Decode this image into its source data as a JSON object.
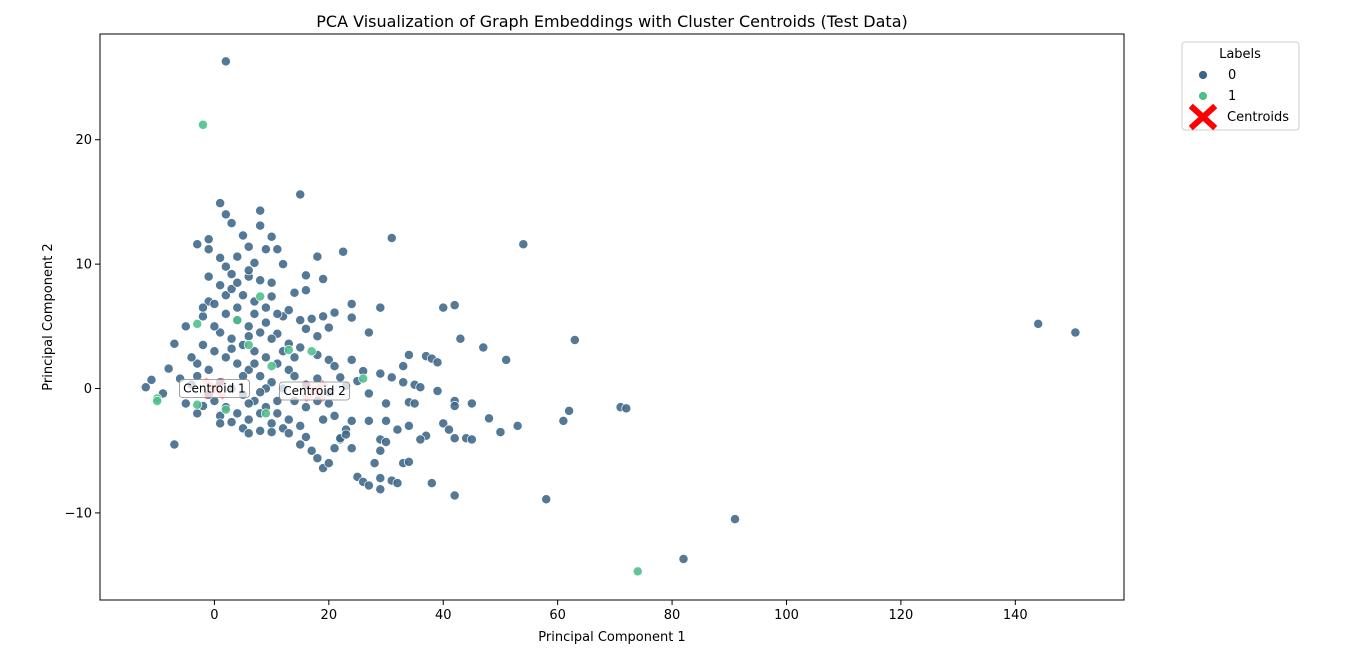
{
  "chart_data": {
    "type": "scatter",
    "title": "PCA Visualization of Graph Embeddings with Cluster Centroids (Test Data)",
    "xlabel": "Principal Component 1",
    "ylabel": "Principal Component 2",
    "xlim": [
      -20,
      159
    ],
    "ylim": [
      -17,
      28.5
    ],
    "x_ticks": [
      0,
      20,
      40,
      60,
      80,
      100,
      120,
      140
    ],
    "y_ticks": [
      -10,
      0,
      10,
      20
    ],
    "y_tick_labels": [
      "−10",
      "0",
      "10",
      "20"
    ],
    "grid": false,
    "legend": {
      "title": "Labels",
      "placement": "outside-top-right",
      "entries": [
        "0",
        "1",
        "Centroids"
      ]
    },
    "colors": {
      "label_0": "#3b6787",
      "label_1": "#4cbf8a",
      "centroid": "#ff0000",
      "point_edge": "#ffffff"
    },
    "series": [
      {
        "name": "0",
        "points": [
          [
            2,
            26.3
          ],
          [
            15,
            15.6
          ],
          [
            1,
            14.9
          ],
          [
            2,
            14
          ],
          [
            8,
            14.3
          ],
          [
            3,
            13.3
          ],
          [
            8,
            13.1
          ],
          [
            -3,
            11.6
          ],
          [
            -1,
            12
          ],
          [
            5,
            12.3
          ],
          [
            6,
            11.4
          ],
          [
            10,
            12.2
          ],
          [
            31,
            12.1
          ],
          [
            54,
            11.6
          ],
          [
            22.5,
            11
          ],
          [
            18,
            10.6
          ],
          [
            9,
            11.2
          ],
          [
            11,
            11.2
          ],
          [
            1,
            10.5
          ],
          [
            4,
            10.6
          ],
          [
            12,
            10
          ],
          [
            16,
            9.1
          ],
          [
            19,
            8.8
          ],
          [
            7,
            10.1
          ],
          [
            -1,
            9
          ],
          [
            3,
            9.2
          ],
          [
            6,
            9
          ],
          [
            14,
            7.7
          ],
          [
            16,
            7.9
          ],
          [
            40,
            6.5
          ],
          [
            42,
            6.7
          ],
          [
            24,
            6.8
          ],
          [
            29,
            6.5
          ],
          [
            24,
            5.7
          ],
          [
            21,
            6.1
          ],
          [
            43,
            4
          ],
          [
            47,
            3.3
          ],
          [
            51,
            2.3
          ],
          [
            63,
            3.9
          ],
          [
            27,
            4.5
          ],
          [
            37,
            2.6
          ],
          [
            38,
            2.4
          ],
          [
            34,
            2.7
          ],
          [
            39,
            2.1
          ],
          [
            24,
            2.3
          ],
          [
            33,
            1.8
          ],
          [
            26,
            1.4
          ],
          [
            29,
            1.2
          ],
          [
            31,
            0.9
          ],
          [
            33,
            0.5
          ],
          [
            35,
            0.3
          ],
          [
            36,
            0.1
          ],
          [
            39,
            -0.2
          ],
          [
            25,
            0.6
          ],
          [
            23,
            0.2
          ],
          [
            27,
            -0.4
          ],
          [
            30,
            -1.2
          ],
          [
            34,
            -1.1
          ],
          [
            35,
            -1.2
          ],
          [
            42,
            -1
          ],
          [
            42,
            -1.4
          ],
          [
            45,
            -1.2
          ],
          [
            48,
            -2.4
          ],
          [
            53,
            -3
          ],
          [
            50,
            -3.5
          ],
          [
            62,
            -1.8
          ],
          [
            61,
            -2.6
          ],
          [
            71,
            -1.5
          ],
          [
            72,
            -1.6
          ],
          [
            40,
            -2.8
          ],
          [
            41,
            -3.3
          ],
          [
            42,
            -4
          ],
          [
            44,
            -4
          ],
          [
            45,
            -4.1
          ],
          [
            37,
            -3.8
          ],
          [
            36,
            -4.1
          ],
          [
            34,
            -3
          ],
          [
            32,
            -3.3
          ],
          [
            30,
            -2.6
          ],
          [
            29,
            -4.1
          ],
          [
            27,
            -2.6
          ],
          [
            24,
            -2.6
          ],
          [
            23,
            -3.3
          ],
          [
            22,
            -4.1
          ],
          [
            24,
            -4.8
          ],
          [
            29,
            -5
          ],
          [
            30,
            -4.3
          ],
          [
            33,
            -6
          ],
          [
            34,
            -5.9
          ],
          [
            28,
            -6
          ],
          [
            25,
            -7.1
          ],
          [
            26,
            -7.5
          ],
          [
            27,
            -7.8
          ],
          [
            29,
            -7.2
          ],
          [
            29,
            -8.1
          ],
          [
            31,
            -7.4
          ],
          [
            32,
            -7.6
          ],
          [
            38,
            -7.6
          ],
          [
            42,
            -8.6
          ],
          [
            58,
            -8.9
          ],
          [
            91,
            -10.5
          ],
          [
            82,
            -13.7
          ],
          [
            144,
            5.2
          ],
          [
            150.5,
            4.5
          ],
          [
            -12,
            0.1
          ],
          [
            -11,
            0.7
          ],
          [
            -8,
            1.6
          ],
          [
            -9,
            -0.4
          ],
          [
            -7,
            -4.5
          ],
          [
            -7,
            3.6
          ],
          [
            -5,
            5
          ],
          [
            -3,
            2
          ],
          [
            -2,
            5.8
          ],
          [
            -1,
            7
          ],
          [
            2,
            7.5
          ],
          [
            4,
            6.5
          ],
          [
            7,
            6
          ],
          [
            10,
            7.4
          ],
          [
            12,
            5.8
          ],
          [
            15,
            5.5
          ],
          [
            17,
            5.6
          ],
          [
            19,
            5.8
          ],
          [
            16,
            4.8
          ],
          [
            18,
            4.2
          ],
          [
            20,
            4.9
          ],
          [
            11,
            4.4
          ],
          [
            13,
            3.6
          ],
          [
            15,
            3.3
          ],
          [
            18,
            2.7
          ],
          [
            20,
            2.3
          ],
          [
            21,
            1.8
          ],
          [
            22,
            0.9
          ],
          [
            -4,
            0.3
          ],
          [
            -2,
            -1.4
          ],
          [
            1,
            -2.2
          ],
          [
            3,
            -2.7
          ],
          [
            5,
            -3.2
          ],
          [
            6,
            -3.6
          ],
          [
            8,
            -3.4
          ],
          [
            10,
            -3.5
          ],
          [
            12,
            -3.2
          ],
          [
            13,
            -3.6
          ],
          [
            15,
            -3
          ],
          [
            16,
            -3.9
          ],
          [
            17,
            -5
          ],
          [
            18,
            -5.6
          ],
          [
            19,
            -6.4
          ],
          [
            20,
            -6
          ],
          [
            21,
            -4.8
          ],
          [
            22,
            -4
          ],
          [
            19,
            -2.5
          ],
          [
            21,
            -2.2
          ],
          [
            23,
            -3.7
          ],
          [
            15,
            -4.5
          ],
          [
            0,
            3
          ],
          [
            2,
            2.5
          ],
          [
            4,
            2
          ],
          [
            6,
            1.5
          ],
          [
            8,
            1
          ],
          [
            10,
            0.5
          ],
          [
            1,
            0.5
          ],
          [
            3,
            0
          ],
          [
            5,
            -0.5
          ],
          [
            7,
            -1
          ],
          [
            9,
            -1.5
          ],
          [
            11,
            -2
          ],
          [
            -1,
            1.5
          ],
          [
            0,
            -1
          ],
          [
            2,
            -1.5
          ],
          [
            4,
            -2
          ],
          [
            6,
            -2.5
          ],
          [
            8,
            -2
          ],
          [
            1,
            4.5
          ],
          [
            3,
            4
          ],
          [
            5,
            3.5
          ],
          [
            7,
            3
          ],
          [
            9,
            2.5
          ],
          [
            11,
            2
          ],
          [
            13,
            1.5
          ],
          [
            2,
            6
          ],
          [
            4,
            5.5
          ],
          [
            6,
            5
          ],
          [
            8,
            4.5
          ],
          [
            10,
            4
          ],
          [
            12,
            3
          ],
          [
            14,
            2.5
          ],
          [
            3,
            8
          ],
          [
            5,
            7.5
          ],
          [
            7,
            7
          ],
          [
            9,
            6.5
          ],
          [
            0,
            5
          ],
          [
            -2,
            3.5
          ],
          [
            -4,
            2.5
          ],
          [
            -3,
            1
          ],
          [
            -1,
            -0.5
          ],
          [
            1,
            -2.8
          ],
          [
            5,
            1
          ],
          [
            7,
            2
          ],
          [
            9,
            0
          ],
          [
            12,
            0
          ],
          [
            14,
            -1
          ],
          [
            16,
            -1.5
          ],
          [
            18,
            -1
          ],
          [
            20,
            -1.2
          ],
          [
            13,
            -2.5
          ],
          [
            10,
            -2.8
          ],
          [
            6,
            4.2
          ],
          [
            4,
            8.5
          ],
          [
            2,
            9.8
          ],
          [
            6,
            9.5
          ],
          [
            8,
            8.7
          ],
          [
            10,
            8.5
          ],
          [
            -1,
            11.2
          ],
          [
            1,
            8.3
          ],
          [
            0,
            6.8
          ],
          [
            -2,
            6.5
          ],
          [
            9,
            5.3
          ],
          [
            11,
            6
          ],
          [
            13,
            6.3
          ],
          [
            3,
            3.2
          ],
          [
            -5,
            -1.2
          ],
          [
            -6,
            0.8
          ],
          [
            -3,
            -2
          ],
          [
            16,
            0.3
          ],
          [
            18,
            0.8
          ],
          [
            20,
            -0.3
          ],
          [
            14,
            1
          ],
          [
            11,
            -1
          ],
          [
            6,
            -1.2
          ],
          [
            8,
            -0.3
          ]
        ]
      },
      {
        "name": "1",
        "points": [
          [
            -2,
            21.2
          ],
          [
            74,
            -14.7
          ],
          [
            8,
            7.4
          ],
          [
            -3,
            5.2
          ],
          [
            17,
            3
          ],
          [
            13,
            3.1
          ],
          [
            -10,
            -0.8
          ],
          [
            -10,
            -1
          ],
          [
            -3,
            -1.3
          ],
          [
            9,
            -2
          ],
          [
            6,
            3.5
          ],
          [
            2,
            -1.7
          ],
          [
            10,
            1.8
          ],
          [
            26,
            0.8
          ],
          [
            4,
            5.5
          ]
        ]
      }
    ],
    "centroids": [
      {
        "label": "Centroid 1",
        "x": 0,
        "y": 0
      },
      {
        "label": "Centroid 2",
        "x": 17.5,
        "y": -0.2
      }
    ]
  }
}
